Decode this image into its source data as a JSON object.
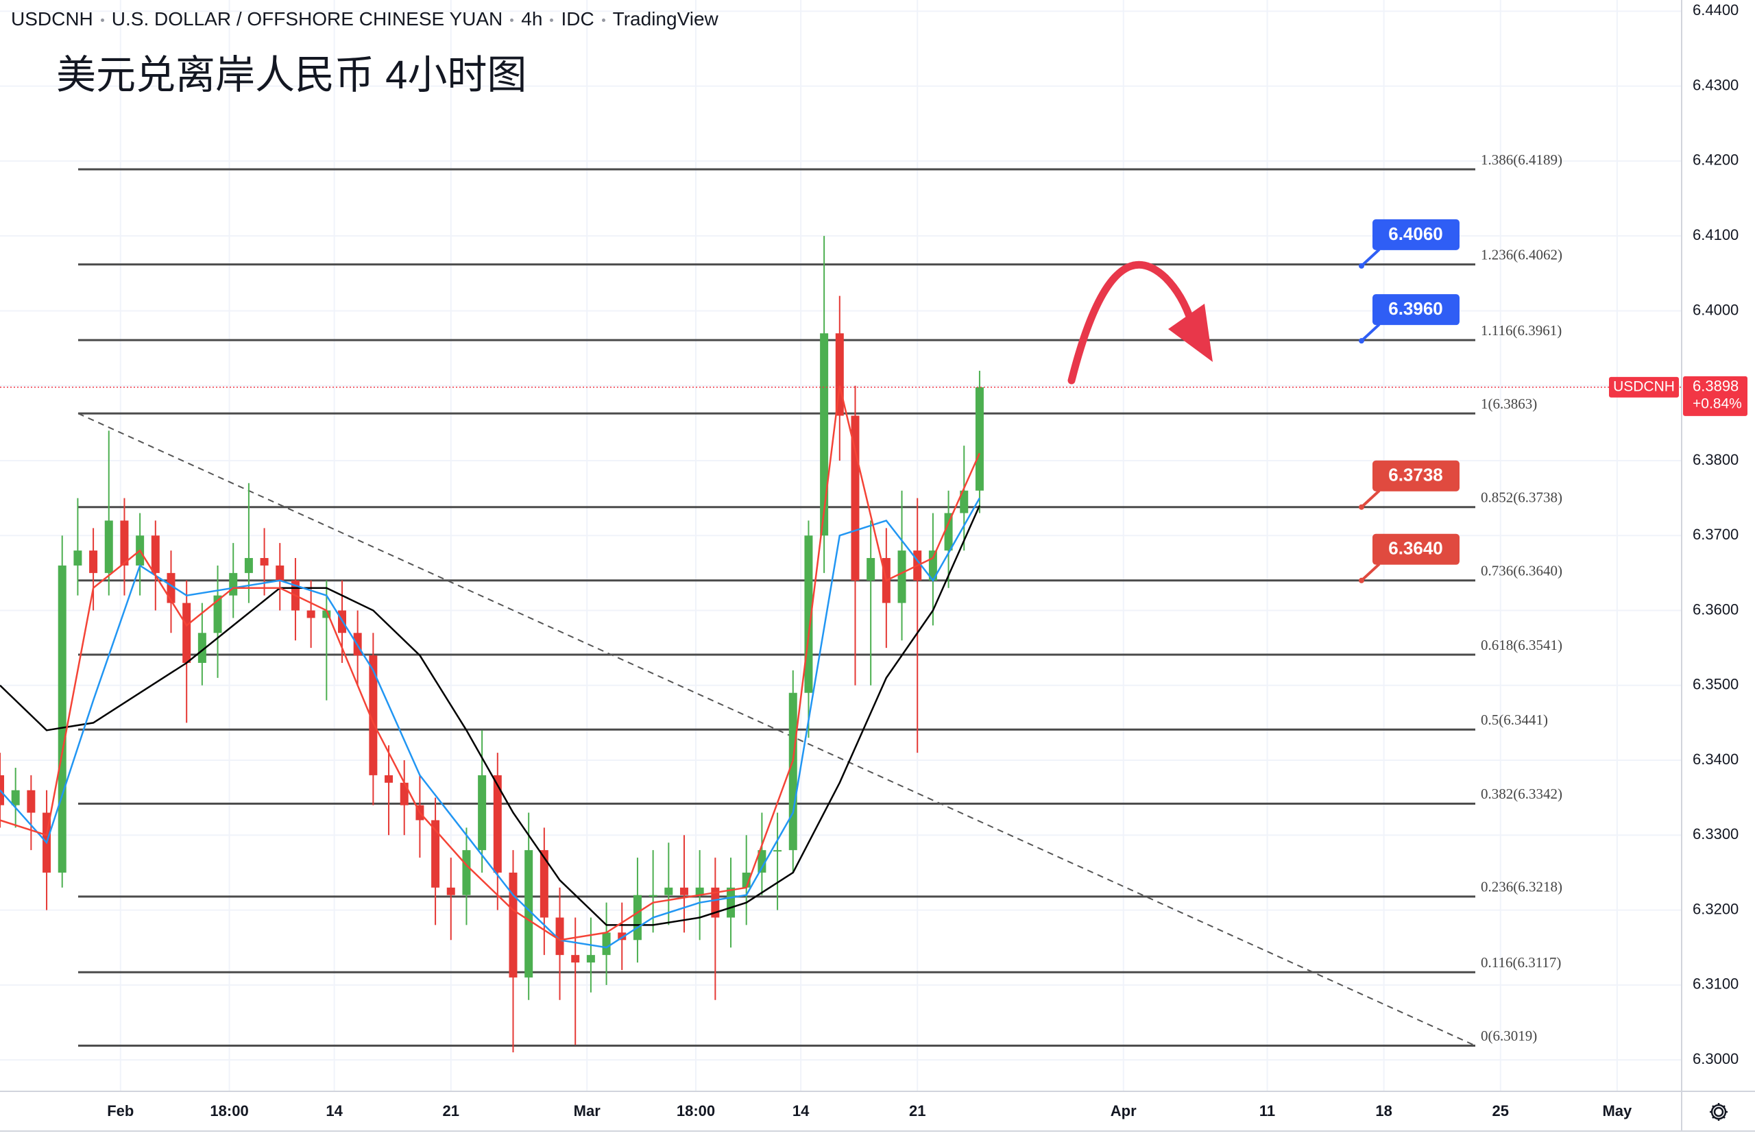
{
  "chart_data": {
    "type": "candlestick",
    "symbol": "USDCNH",
    "description": "U.S. DOLLAR / OFFSHORE CHINESE YUAN",
    "interval": "4h",
    "exchange": "IDC",
    "source": "TradingView",
    "subtitle": "美元兑离岸人民币 4小时图",
    "up_color": "#4caf50",
    "down_color": "#e53935",
    "xlim": [
      0,
      432.6
    ],
    "ylim": [
      6.2958,
      6.4415
    ],
    "grid": true,
    "xticks": [
      {
        "value": 31,
        "label": "Feb"
      },
      {
        "value": 59,
        "label": "18:00"
      },
      {
        "value": 86,
        "label": "14"
      },
      {
        "value": 116,
        "label": "21"
      },
      {
        "value": 151,
        "label": "Mar"
      },
      {
        "value": 179,
        "label": "18:00"
      },
      {
        "value": 206,
        "label": "14"
      },
      {
        "value": 236,
        "label": "21"
      },
      {
        "value": 289,
        "label": "Apr"
      },
      {
        "value": 326,
        "label": "11"
      },
      {
        "value": 356,
        "label": "18"
      },
      {
        "value": 386,
        "label": "25"
      },
      {
        "value": 416,
        "label": "May"
      }
    ],
    "yticks": [
      {
        "value": 6.3,
        "label": "6.3000"
      },
      {
        "value": 6.31,
        "label": "6.3100"
      },
      {
        "value": 6.32,
        "label": "6.3200"
      },
      {
        "value": 6.33,
        "label": "6.3300"
      },
      {
        "value": 6.34,
        "label": "6.3400"
      },
      {
        "value": 6.35,
        "label": "6.3500"
      },
      {
        "value": 6.36,
        "label": "6.3600"
      },
      {
        "value": 6.37,
        "label": "6.3700"
      },
      {
        "value": 6.38,
        "label": "6.3800"
      },
      {
        "value": 6.39,
        "label": "6.3900"
      },
      {
        "value": 6.4,
        "label": "6.4000"
      },
      {
        "value": 6.41,
        "label": "6.4100"
      },
      {
        "value": 6.42,
        "label": "6.4200"
      },
      {
        "value": 6.43,
        "label": "6.4300"
      },
      {
        "value": 6.44,
        "label": "6.4400"
      }
    ],
    "x": [
      0,
      4,
      8,
      12,
      16,
      20,
      24,
      28,
      32,
      36,
      40,
      44,
      48,
      52,
      56,
      60,
      64,
      68,
      72,
      76,
      80,
      84,
      88,
      92,
      96,
      100,
      104,
      108,
      112,
      116,
      120,
      124,
      128,
      132,
      136,
      140,
      144,
      148,
      152,
      156,
      160,
      164,
      168,
      172,
      176,
      180,
      184,
      188,
      192,
      196,
      200,
      204,
      208,
      212,
      216,
      220,
      224,
      228,
      232,
      236,
      240,
      244,
      248,
      252
    ],
    "open": [
      6.338,
      6.334,
      6.336,
      6.333,
      6.325,
      6.366,
      6.368,
      6.365,
      6.372,
      6.366,
      6.37,
      6.365,
      6.361,
      6.353,
      6.357,
      6.362,
      6.365,
      6.367,
      6.366,
      6.364,
      6.36,
      6.359,
      6.36,
      6.357,
      6.354,
      6.338,
      6.337,
      6.334,
      6.332,
      6.323,
      6.322,
      6.328,
      6.338,
      6.325,
      6.311,
      6.328,
      6.319,
      6.314,
      6.313,
      6.314,
      6.317,
      6.316,
      6.322,
      6.322,
      6.323,
      6.322,
      6.323,
      6.319,
      6.323,
      6.325,
      6.328,
      6.328,
      6.349,
      6.37,
      6.397,
      6.386,
      6.364,
      6.367,
      6.361,
      6.368,
      6.364,
      6.368,
      6.373,
      6.376
    ],
    "high": [
      6.341,
      6.339,
      6.338,
      6.336,
      6.37,
      6.375,
      6.371,
      6.384,
      6.375,
      6.373,
      6.372,
      6.368,
      6.364,
      6.361,
      6.366,
      6.369,
      6.377,
      6.371,
      6.369,
      6.367,
      6.364,
      6.364,
      6.364,
      6.36,
      6.357,
      6.342,
      6.34,
      6.338,
      6.335,
      6.327,
      6.331,
      6.344,
      6.341,
      6.328,
      6.333,
      6.331,
      6.323,
      6.319,
      6.319,
      6.321,
      6.321,
      6.327,
      6.328,
      6.329,
      6.33,
      6.328,
      6.327,
      6.327,
      6.33,
      6.333,
      6.333,
      6.352,
      6.372,
      6.41,
      6.402,
      6.39,
      6.372,
      6.371,
      6.376,
      6.375,
      6.373,
      6.376,
      6.382,
      6.392
    ],
    "low": [
      6.331,
      6.331,
      6.328,
      6.32,
      6.323,
      6.362,
      6.36,
      6.362,
      6.362,
      6.362,
      6.36,
      6.357,
      6.345,
      6.35,
      6.351,
      6.359,
      6.361,
      6.362,
      6.36,
      6.356,
      6.355,
      6.348,
      6.353,
      6.35,
      6.334,
      6.33,
      6.33,
      6.327,
      6.318,
      6.316,
      6.318,
      6.325,
      6.32,
      6.301,
      6.308,
      6.314,
      6.308,
      6.302,
      6.309,
      6.31,
      6.312,
      6.313,
      6.317,
      6.318,
      6.317,
      6.316,
      6.308,
      6.315,
      6.318,
      6.322,
      6.32,
      6.325,
      6.343,
      6.365,
      6.38,
      6.35,
      6.35,
      6.355,
      6.356,
      6.341,
      6.358,
      6.363,
      6.368,
      6.373
    ],
    "close": [
      6.334,
      6.336,
      6.333,
      6.325,
      6.366,
      6.368,
      6.365,
      6.372,
      6.366,
      6.37,
      6.365,
      6.361,
      6.353,
      6.357,
      6.362,
      6.365,
      6.367,
      6.366,
      6.364,
      6.36,
      6.359,
      6.36,
      6.357,
      6.354,
      6.338,
      6.337,
      6.334,
      6.332,
      6.323,
      6.322,
      6.328,
      6.338,
      6.325,
      6.311,
      6.328,
      6.319,
      6.314,
      6.313,
      6.314,
      6.317,
      6.316,
      6.322,
      6.322,
      6.323,
      6.322,
      6.323,
      6.319,
      6.323,
      6.325,
      6.328,
      6.328,
      6.349,
      6.37,
      6.397,
      6.386,
      6.364,
      6.367,
      6.361,
      6.368,
      6.364,
      6.368,
      6.373,
      6.376,
      6.3898
    ],
    "moving_averages": [
      {
        "color": "#000000",
        "x": [
          0,
          12,
          24,
          36,
          48,
          60,
          72,
          84,
          96,
          108,
          120,
          132,
          144,
          156,
          168,
          180,
          192,
          204,
          216,
          228,
          240,
          252
        ],
        "values": [
          6.35,
          6.344,
          6.345,
          6.349,
          6.353,
          6.358,
          6.363,
          6.363,
          6.36,
          6.354,
          6.344,
          6.333,
          6.324,
          6.318,
          6.318,
          6.319,
          6.321,
          6.325,
          6.337,
          6.351,
          6.36,
          6.374
        ]
      },
      {
        "color": "#2196f3",
        "x": [
          0,
          12,
          24,
          36,
          48,
          60,
          72,
          84,
          96,
          108,
          120,
          132,
          144,
          156,
          168,
          180,
          192,
          204,
          216,
          228,
          240,
          252
        ],
        "values": [
          6.336,
          6.329,
          6.348,
          6.366,
          6.362,
          6.363,
          6.364,
          6.362,
          6.352,
          6.338,
          6.33,
          6.322,
          6.316,
          6.315,
          6.319,
          6.321,
          6.322,
          6.333,
          6.37,
          6.372,
          6.364,
          6.375
        ]
      },
      {
        "color": "#f44336",
        "x": [
          0,
          12,
          24,
          36,
          48,
          60,
          72,
          84,
          96,
          108,
          120,
          132,
          144,
          156,
          168,
          180,
          192,
          204,
          216,
          228,
          240,
          252
        ],
        "values": [
          6.332,
          6.33,
          6.363,
          6.368,
          6.358,
          6.363,
          6.363,
          6.36,
          6.345,
          6.333,
          6.326,
          6.32,
          6.316,
          6.317,
          6.321,
          6.322,
          6.323,
          6.34,
          6.39,
          6.364,
          6.367,
          6.381
        ]
      }
    ],
    "fib_levels": [
      {
        "value": 6.4189,
        "label": "1.386(6.4189)"
      },
      {
        "value": 6.4062,
        "label": "1.236(6.4062)"
      },
      {
        "value": 6.3961,
        "label": "1.116(6.3961)"
      },
      {
        "value": 6.3863,
        "label": "1(6.3863)"
      },
      {
        "value": 6.3738,
        "label": "0.852(6.3738)"
      },
      {
        "value": 6.364,
        "label": "0.736(6.3640)"
      },
      {
        "value": 6.3541,
        "label": "0.618(6.3541)"
      },
      {
        "value": 6.3441,
        "label": "0.5(6.3441)"
      },
      {
        "value": 6.3342,
        "label": "0.382(6.3342)"
      },
      {
        "value": 6.3218,
        "label": "0.236(6.3218)"
      },
      {
        "value": 6.3117,
        "label": "0.116(6.3117)"
      },
      {
        "value": 6.3019,
        "label": "0(6.3019)"
      }
    ],
    "price_notes": [
      {
        "value": 6.406,
        "label": "6.4060",
        "color": "#2f5ef5"
      },
      {
        "value": 6.396,
        "label": "6.3960",
        "color": "#2f5ef5"
      },
      {
        "value": 6.3738,
        "label": "6.3738",
        "color": "#e04a3f"
      },
      {
        "value": 6.364,
        "label": "6.3640",
        "color": "#e04a3f"
      }
    ],
    "last_price": {
      "value": 6.3898,
      "label": "6.3898"
    },
    "change": {
      "value": 0.84,
      "label": "+0.84%"
    },
    "last_color": "#f23645"
  }
}
